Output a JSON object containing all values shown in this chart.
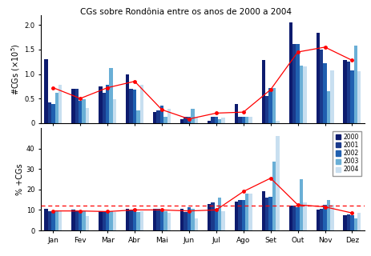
{
  "title": "CGs sobre Rondônia entre os anos de 2000 a 2004",
  "months": [
    "Jan",
    "Fev",
    "Mar",
    "Abr",
    "Mai",
    "Jun",
    "Jul",
    "Ago",
    "Set",
    "Out",
    "Nov",
    "Dez"
  ],
  "bar_colors": [
    "#0d1b6e",
    "#1a3a8c",
    "#2060b0",
    "#6aafd6",
    "#c8dff0"
  ],
  "years": [
    "2000",
    "2001",
    "2002",
    "2003",
    "2004"
  ],
  "top_data": {
    "values": [
      [
        1.3,
        0.7,
        0.75,
        1.0,
        0.22,
        0.08,
        0.05,
        0.38,
        1.28,
        2.05,
        1.85,
        1.28
      ],
      [
        0.42,
        0.7,
        0.62,
        0.7,
        0.25,
        0.12,
        0.12,
        0.12,
        0.55,
        1.62,
        1.5,
        1.25
      ],
      [
        0.38,
        0.45,
        0.78,
        0.68,
        0.35,
        0.12,
        0.12,
        0.12,
        0.72,
        1.62,
        1.22,
        1.08
      ],
      [
        0.62,
        0.48,
        1.12,
        0.25,
        0.12,
        0.28,
        0.08,
        0.12,
        0.72,
        1.18,
        0.65,
        1.58
      ],
      [
        0.78,
        0.3,
        0.48,
        0.78,
        0.28,
        0.12,
        0.1,
        0.12,
        0.05,
        1.15,
        1.08,
        1.05
      ]
    ],
    "red_line": [
      0.72,
      0.5,
      0.72,
      0.85,
      0.27,
      0.08,
      0.2,
      0.22,
      0.68,
      1.45,
      1.55,
      1.28
    ],
    "ylabel": "#CGs ($\\times$10$^5$)",
    "ylim": [
      0,
      2.2
    ],
    "yticks": [
      0.0,
      0.5,
      1.0,
      1.5,
      2.0
    ],
    "yticklabels": [
      "0",
      "0.5",
      "1.0",
      "1.5",
      "2.0"
    ]
  },
  "bottom_data": {
    "values": [
      [
        10.5,
        10.0,
        9.5,
        10.5,
        10.5,
        10.5,
        13.0,
        14.0,
        19.0,
        12.0,
        10.0,
        7.5
      ],
      [
        9.5,
        9.5,
        9.5,
        10.0,
        10.5,
        9.0,
        13.5,
        15.0,
        16.0,
        12.0,
        10.5,
        8.0
      ],
      [
        9.0,
        9.5,
        9.0,
        10.5,
        10.0,
        11.5,
        10.5,
        15.0,
        16.5,
        11.5,
        12.5,
        7.5
      ],
      [
        9.5,
        9.5,
        9.5,
        9.0,
        9.5,
        10.5,
        16.0,
        18.0,
        33.5,
        25.0,
        15.0,
        6.0
      ],
      [
        9.5,
        7.0,
        9.0,
        9.5,
        8.5,
        6.0,
        9.5,
        18.0,
        46.0,
        13.5,
        12.5,
        8.5
      ]
    ],
    "red_line": [
      9.5,
      9.5,
      9.2,
      10.0,
      10.0,
      9.5,
      10.0,
      19.0,
      25.5,
      12.5,
      11.5,
      8.5
    ],
    "dashed_line": 12.0,
    "ylabel": "% +CGs",
    "ylim": [
      0,
      50
    ],
    "yticks": [
      0,
      10,
      20,
      30,
      40
    ],
    "yticklabels": [
      "0",
      "10",
      "20",
      "30",
      "40"
    ]
  },
  "fig_width": 4.64,
  "fig_height": 3.2,
  "dpi": 100
}
